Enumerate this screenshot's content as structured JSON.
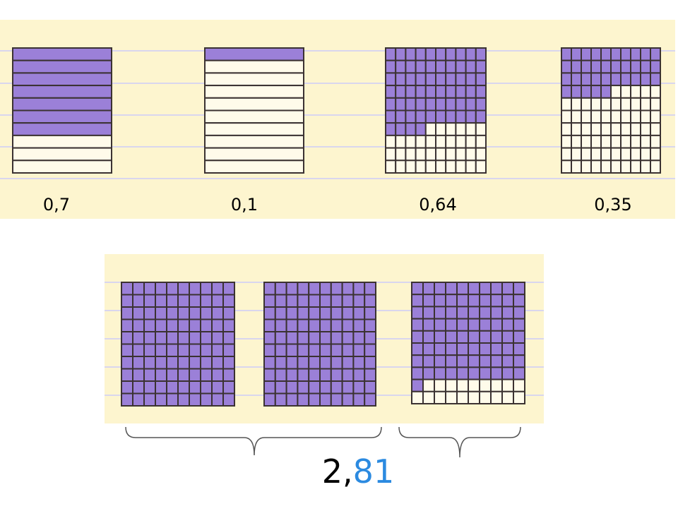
{
  "figures": [
    {
      "label": "0,7"
    },
    {
      "label": "0,1"
    },
    {
      "label": "0,64"
    },
    {
      "label": "0,35"
    }
  ],
  "total": {
    "whole": "2,",
    "fraction": "81"
  }
}
